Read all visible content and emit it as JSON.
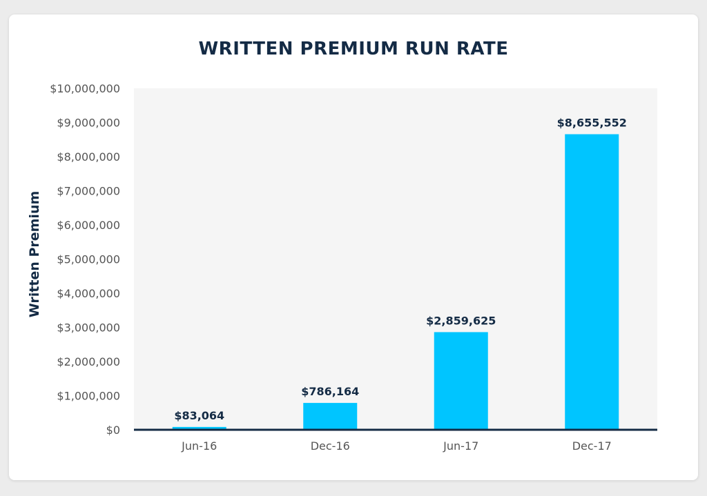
{
  "chart_data": {
    "type": "bar",
    "title": "WRITTEN PREMIUM RUN RATE",
    "xlabel": "",
    "ylabel": "Written Premium",
    "categories": [
      "Jun-16",
      "Dec-16",
      "Jun-17",
      "Dec-17"
    ],
    "values": [
      83064,
      786164,
      2859625,
      8655552
    ],
    "data_labels": [
      "$83,064",
      "$786,164",
      "$2,859,625",
      "$8,655,552"
    ],
    "ylim": [
      0,
      10000000
    ],
    "yticks": [
      0,
      1000000,
      2000000,
      3000000,
      4000000,
      5000000,
      6000000,
      7000000,
      8000000,
      9000000,
      10000000
    ],
    "ytick_labels": [
      "$0",
      "$1,000,000",
      "$2,000,000",
      "$3,000,000",
      "$4,000,000",
      "$5,000,000",
      "$6,000,000",
      "$7,000,000",
      "$8,000,000",
      "$9,000,000",
      "$10,000,000"
    ],
    "grid": false,
    "legend": "none",
    "colors": {
      "bar": "#00c5ff",
      "plot_background": "#f5f5f5",
      "axis_line": "#142b45",
      "title": "#142b45",
      "tick_text": "#555555",
      "data_label": "#142b45"
    }
  }
}
